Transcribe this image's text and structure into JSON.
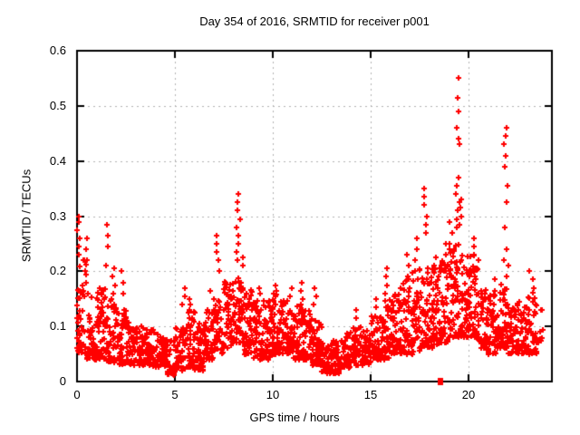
{
  "figure": {
    "background": "#ffffff",
    "text_color": "#000000"
  },
  "chart_data": {
    "type": "scatter",
    "title": "Day 354 of 2016, SRMTID for receiver p001",
    "xlabel": "GPS time / hours",
    "ylabel": "SRMTID / TECUs",
    "xlim": [
      0,
      24.26
    ],
    "ylim": [
      0,
      0.6
    ],
    "xticks": [
      0,
      5,
      10,
      15,
      20
    ],
    "xtick_labels": [
      "0",
      "5",
      "10",
      "15",
      "20"
    ],
    "yticks": [
      0,
      0.1,
      0.2,
      0.3,
      0.4,
      0.5,
      0.6
    ],
    "ytick_labels": [
      "0",
      "0.1",
      "0.2",
      "0.3",
      "0.4",
      "0.5",
      "0.6"
    ],
    "grid": true,
    "legend": "none",
    "marker": "plus",
    "marker_size_px": 7,
    "colors": {
      "points": "#ff0000",
      "grid": "#b3b3b3",
      "axis": "#000000"
    },
    "seed": 20161354,
    "band_exponent": 1.5,
    "scatter_bands_format": [
      "hour_start",
      "hour_end",
      "n_points",
      "y_min",
      "y_max"
    ],
    "scatter_bands": [
      [
        0.0,
        0.5,
        55,
        0.05,
        0.22
      ],
      [
        0.5,
        1.0,
        50,
        0.04,
        0.16
      ],
      [
        1.0,
        1.5,
        50,
        0.04,
        0.17
      ],
      [
        1.5,
        2.0,
        50,
        0.035,
        0.15
      ],
      [
        2.0,
        2.5,
        48,
        0.03,
        0.13
      ],
      [
        2.5,
        3.0,
        45,
        0.03,
        0.11
      ],
      [
        3.0,
        3.5,
        45,
        0.03,
        0.1
      ],
      [
        3.5,
        4.0,
        45,
        0.028,
        0.095
      ],
      [
        4.0,
        4.5,
        45,
        0.025,
        0.09
      ],
      [
        4.5,
        5.0,
        45,
        0.012,
        0.075
      ],
      [
        5.0,
        5.5,
        45,
        0.02,
        0.1
      ],
      [
        5.5,
        6.0,
        45,
        0.025,
        0.13
      ],
      [
        6.0,
        6.5,
        45,
        0.02,
        0.11
      ],
      [
        6.5,
        7.0,
        45,
        0.04,
        0.13
      ],
      [
        7.0,
        7.5,
        45,
        0.05,
        0.15
      ],
      [
        7.5,
        8.0,
        50,
        0.06,
        0.19
      ],
      [
        8.0,
        8.5,
        50,
        0.07,
        0.19
      ],
      [
        8.5,
        9.0,
        50,
        0.05,
        0.17
      ],
      [
        9.0,
        9.5,
        50,
        0.04,
        0.15
      ],
      [
        9.5,
        10.0,
        50,
        0.04,
        0.15
      ],
      [
        10.0,
        10.5,
        50,
        0.05,
        0.16
      ],
      [
        10.5,
        11.0,
        50,
        0.05,
        0.15
      ],
      [
        11.0,
        11.5,
        50,
        0.04,
        0.14
      ],
      [
        11.5,
        12.0,
        50,
        0.04,
        0.13
      ],
      [
        12.0,
        12.5,
        50,
        0.03,
        0.11
      ],
      [
        12.5,
        13.0,
        50,
        0.015,
        0.07
      ],
      [
        13.0,
        13.5,
        50,
        0.015,
        0.075
      ],
      [
        13.5,
        14.0,
        45,
        0.025,
        0.09
      ],
      [
        14.0,
        14.5,
        45,
        0.03,
        0.1
      ],
      [
        14.5,
        15.0,
        45,
        0.03,
        0.1
      ],
      [
        15.0,
        15.5,
        45,
        0.04,
        0.12
      ],
      [
        15.5,
        16.0,
        45,
        0.04,
        0.15
      ],
      [
        16.0,
        16.5,
        50,
        0.05,
        0.16
      ],
      [
        16.5,
        17.0,
        50,
        0.05,
        0.19
      ],
      [
        17.0,
        17.5,
        50,
        0.05,
        0.2
      ],
      [
        17.5,
        18.0,
        50,
        0.06,
        0.21
      ],
      [
        18.0,
        18.5,
        55,
        0.06,
        0.21
      ],
      [
        18.5,
        19.0,
        55,
        0.07,
        0.22
      ],
      [
        19.0,
        19.5,
        55,
        0.08,
        0.25
      ],
      [
        19.5,
        20.0,
        55,
        0.08,
        0.24
      ],
      [
        20.0,
        20.5,
        55,
        0.08,
        0.23
      ],
      [
        20.5,
        21.0,
        50,
        0.06,
        0.17
      ],
      [
        21.0,
        21.5,
        50,
        0.05,
        0.16
      ],
      [
        21.5,
        22.0,
        50,
        0.06,
        0.18
      ],
      [
        22.0,
        22.5,
        45,
        0.05,
        0.15
      ],
      [
        22.5,
        23.0,
        45,
        0.05,
        0.15
      ],
      [
        23.0,
        23.5,
        45,
        0.05,
        0.17
      ],
      [
        23.5,
        23.8,
        8,
        0.07,
        0.13
      ]
    ],
    "outlier_columns_format": [
      "hour",
      [
        "y_values"
      ]
    ],
    "outlier_columns": [
      [
        0.08,
        [
          0.26,
          0.275,
          0.29,
          0.3
        ]
      ],
      [
        0.12,
        [
          0.23,
          0.245
        ]
      ],
      [
        0.55,
        [
          0.22,
          0.24,
          0.26
        ]
      ],
      [
        1.55,
        [
          0.21,
          0.245,
          0.265,
          0.285
        ]
      ],
      [
        1.9,
        [
          0.16,
          0.175,
          0.19,
          0.205
        ]
      ],
      [
        2.35,
        [
          0.16,
          0.18,
          0.2
        ]
      ],
      [
        5.45,
        [
          0.14,
          0.155,
          0.17
        ]
      ],
      [
        5.8,
        [
          0.14,
          0.15
        ]
      ],
      [
        6.9,
        [
          0.15,
          0.165
        ]
      ],
      [
        7.2,
        [
          0.2,
          0.22,
          0.235,
          0.25,
          0.265
        ]
      ],
      [
        8.25,
        [
          0.22,
          0.235,
          0.25,
          0.265,
          0.28,
          0.295,
          0.31,
          0.325,
          0.34
        ]
      ],
      [
        8.45,
        [
          0.21,
          0.225
        ]
      ],
      [
        9.3,
        [
          0.16,
          0.17
        ]
      ],
      [
        10.2,
        [
          0.155,
          0.165,
          0.175
        ]
      ],
      [
        10.95,
        [
          0.155,
          0.17
        ]
      ],
      [
        11.45,
        [
          0.15,
          0.165,
          0.18
        ]
      ],
      [
        12.15,
        [
          0.14,
          0.155,
          0.17
        ]
      ],
      [
        14.3,
        [
          0.115,
          0.13
        ]
      ],
      [
        15.3,
        [
          0.135,
          0.15
        ]
      ],
      [
        15.8,
        [
          0.16,
          0.175,
          0.19,
          0.205
        ]
      ],
      [
        16.9,
        [
          0.19,
          0.21,
          0.23
        ]
      ],
      [
        17.3,
        [
          0.2,
          0.22,
          0.24,
          0.26
        ]
      ],
      [
        17.8,
        [
          0.27,
          0.285,
          0.3,
          0.32,
          0.335,
          0.35
        ]
      ],
      [
        18.3,
        [
          0.21,
          0.225
        ]
      ],
      [
        18.9,
        [
          0.23,
          0.25
        ]
      ],
      [
        19.1,
        [
          0.25,
          0.27,
          0.29
        ]
      ],
      [
        19.45,
        [
          0.28,
          0.295,
          0.31,
          0.325,
          0.34,
          0.355,
          0.37
        ]
      ],
      [
        19.5,
        [
          0.43,
          0.44,
          0.46,
          0.49,
          0.515,
          0.55
        ]
      ],
      [
        19.6,
        [
          0.285,
          0.3,
          0.315,
          0.33
        ]
      ],
      [
        20.35,
        [
          0.23,
          0.245,
          0.26
        ]
      ],
      [
        21.3,
        [
          0.165,
          0.185
        ]
      ],
      [
        21.9,
        [
          0.22,
          0.24,
          0.28,
          0.325,
          0.355,
          0.39,
          0.41,
          0.43,
          0.445,
          0.46
        ]
      ],
      [
        22.05,
        [
          0.19,
          0.21
        ]
      ],
      [
        23.2,
        [
          0.185,
          0.2
        ]
      ]
    ],
    "axis_square_points": [
      [
        18.56,
        0.0
      ]
    ]
  }
}
